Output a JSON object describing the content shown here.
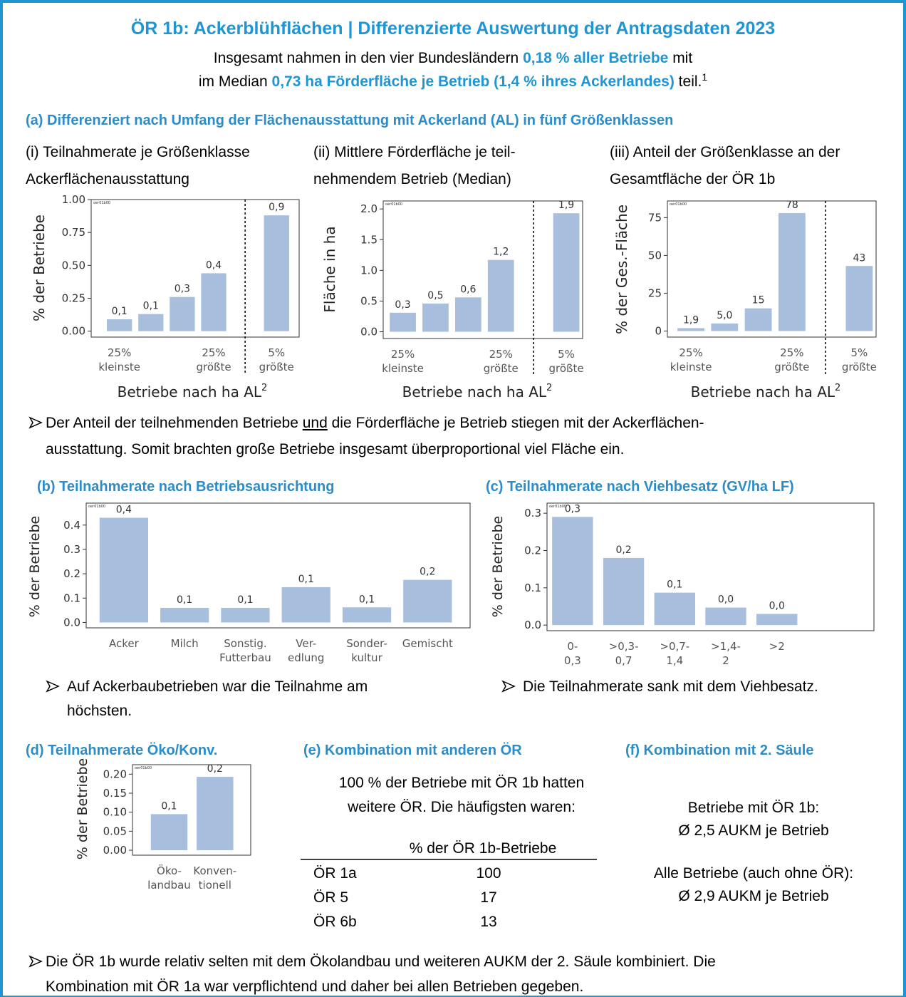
{
  "header": {
    "title": "ÖR 1b: Ackerblühflächen | Differenzierte Auswertung der Antragsdaten 2023",
    "subtitle": [
      [
        "Insgesamt nahmen in den vier Bundesländern ",
        "0,18 % aller Betriebe",
        " mit"
      ],
      [
        "im Median ",
        "0,73 ha Förderfläche je Betrieb (1,4 % ihres Ackerlandes)",
        " teil.",
        "1"
      ]
    ]
  },
  "section_a": {
    "heading": "(a) Differenziert nach Umfang der Flächenausstattung mit Ackerland (AL) in fünf Größenklassen",
    "note": [
      [
        "Der Anteil der teilnehmenden Betriebe ",
        "und",
        " die Förderfläche je Betrieb stiegen mit der Ackerflächen-"
      ],
      [
        "ausstattung. Somit brachten große Betriebe insgesamt überproportional viel Fläche ein."
      ]
    ]
  },
  "note_b": [
    "Auf Ackerbaubetrieben war die Teilnahme am",
    "höchsten."
  ],
  "note_c": "Die Teilnahmerate sank mit dem Viehbesatz.",
  "section_e": {
    "heading": "(e) Kombination mit anderen ÖR",
    "intro": [
      "100 % der Betriebe mit ÖR 1b hatten",
      "weitere ÖR. Die häufigsten waren:"
    ],
    "table": {
      "header": "% der ÖR 1b-Betriebe",
      "rows": [
        [
          "ÖR 1a",
          "100"
        ],
        [
          "ÖR 5",
          "17"
        ],
        [
          "ÖR 6b",
          "13"
        ]
      ]
    }
  },
  "section_f": {
    "heading": "(f) Kombination mit 2. Säule",
    "lines": [
      "Betriebe mit ÖR 1b:",
      "Ø 2,5 AUKM je Betrieb",
      "Alle Betriebe (auch ohne ÖR):",
      "Ø 2,9 AUKM je Betrieb"
    ]
  },
  "final_note": [
    "Die ÖR 1b wurde relativ selten mit dem Ökolandbau und weiteren AUKM der 2. Säule kombiniert. Die",
    "Kombination mit ÖR 1a war verpflichtend und daher bei allen Betrieben gegeben."
  ],
  "chart_data": [
    {
      "type": "bar",
      "title": [
        "(i) Teilnahmerate je Größenklasse",
        "Ackerflächenausstattung"
      ],
      "y_label": "% der Betriebe",
      "x_label": "Betriebe nach ha AL",
      "x_label_note": "2",
      "watermark": "oer01b00",
      "divider": true,
      "color": "#a8bedd",
      "categories": [
        [
          "25%",
          "kleinste"
        ],
        null,
        null,
        [
          "25%",
          "größte"
        ],
        [
          "5%",
          "größte"
        ]
      ],
      "values": [
        0.09,
        0.13,
        0.26,
        0.44,
        0.88
      ],
      "value_labels": [
        "0,1",
        "0,1",
        "0,3",
        "0,4",
        "0,9"
      ],
      "ylim": [
        -0.045,
        1.0
      ],
      "yticks": [
        {
          "value": 0,
          "label": "0.00"
        },
        {
          "value": 0.25,
          "label": "0.25"
        },
        {
          "value": 0.5,
          "label": "0.50"
        },
        {
          "value": 0.75,
          "label": "0.75"
        },
        {
          "value": 1,
          "label": "1.00"
        }
      ]
    },
    {
      "type": "bar",
      "title": [
        "(ii) Mittlere Förderfläche je teil-",
        "nehmendem Betrieb (Median)"
      ],
      "y_label": "Fläche in ha",
      "x_label": "Betriebe nach ha AL",
      "x_label_note": "2",
      "watermark": "oer01b00",
      "divider": true,
      "color": "#a8bedd",
      "categories": [
        [
          "25%",
          "kleinste"
        ],
        null,
        null,
        [
          "25%",
          "größte"
        ],
        [
          "5%",
          "größte"
        ]
      ],
      "values": [
        0.31,
        0.46,
        0.56,
        1.17,
        1.93
      ],
      "value_labels": [
        "0,3",
        "0,5",
        "0,6",
        "1,2",
        "1,9"
      ],
      "ylim": [
        -0.11,
        2.13
      ],
      "yticks": [
        {
          "value": 0,
          "label": "0.0"
        },
        {
          "value": 0.5,
          "label": "0.5"
        },
        {
          "value": 1,
          "label": "1.0"
        },
        {
          "value": 1.5,
          "label": "1.5"
        },
        {
          "value": 2,
          "label": "2.0"
        }
      ]
    },
    {
      "type": "bar",
      "title": [
        "(iii) Anteil der Größenklasse an der",
        "Gesamtfläche der ÖR 1b"
      ],
      "y_label": "% der Ges.-Fläche",
      "x_label": "Betriebe nach ha AL",
      "x_label_note": "2",
      "watermark": "oer01b00",
      "divider": true,
      "color": "#a8bedd",
      "categories": [
        [
          "25%",
          "kleinste"
        ],
        null,
        null,
        [
          "25%",
          "größte"
        ],
        [
          "5%",
          "größte"
        ]
      ],
      "values": [
        1.9,
        5.0,
        15,
        78,
        43
      ],
      "value_labels": [
        "1,9",
        "5,0",
        "15",
        "78",
        "43"
      ],
      "ylim": [
        -4,
        86
      ],
      "yticks": [
        0,
        25,
        50,
        75
      ]
    },
    {
      "type": "bar",
      "title": "(b) Teilnahmerate nach Betriebsausrichtung",
      "y_label": "% der Betriebe",
      "watermark": "oer01b00",
      "color": "#a8bedd",
      "categories": [
        [
          "Acker"
        ],
        [
          "Milch"
        ],
        [
          "Sonstig.",
          "Futterbau"
        ],
        [
          "Ver-",
          "edlung"
        ],
        [
          "Sonder-",
          "kultur"
        ],
        [
          "Gemischt"
        ]
      ],
      "values": [
        0.43,
        0.06,
        0.06,
        0.145,
        0.062,
        0.175
      ],
      "value_labels": [
        "0,4",
        "0,1",
        "0,1",
        "0,1",
        "0,1",
        "0,2"
      ],
      "ylim": [
        -0.022,
        0.49
      ],
      "yticks": [
        {
          "value": 0,
          "label": "0.0"
        },
        {
          "value": 0.1,
          "label": "0.1"
        },
        {
          "value": 0.2,
          "label": "0.2"
        },
        {
          "value": 0.3,
          "label": "0.3"
        },
        {
          "value": 0.4,
          "label": "0.4"
        }
      ]
    },
    {
      "type": "bar",
      "title": "(c) Teilnahmerate nach Viehbesatz (GV/ha LF)",
      "y_label": "% der Betriebe",
      "watermark": "oer01b00",
      "color": "#a8bedd",
      "categories": [
        [
          "0-",
          "0,3"
        ],
        [
          ">0,3-",
          "0,7"
        ],
        [
          ">0,7-",
          "1,4"
        ],
        [
          ">1,4-",
          "2"
        ],
        [
          ">2"
        ]
      ],
      "values": [
        0.29,
        0.18,
        0.087,
        0.047,
        0.03
      ],
      "value_labels": [
        "0,3",
        "0,2",
        "0,1",
        "0,0",
        "0,0"
      ],
      "ylim": [
        -0.015,
        0.327
      ],
      "yticks": [
        {
          "value": 0,
          "label": "0.0"
        },
        {
          "value": 0.1,
          "label": "0.1"
        },
        {
          "value": 0.2,
          "label": "0.2"
        },
        {
          "value": 0.3,
          "label": "0.3"
        }
      ]
    },
    {
      "type": "bar",
      "title": "(d) Teilnahmerate Öko/Konv.",
      "y_label": "% der Betriebe",
      "watermark": "oer01b00",
      "color": "#a8bedd",
      "categories": [
        [
          "Öko-",
          "landbau"
        ],
        [
          "Konven-",
          "tionell"
        ]
      ],
      "values": [
        0.095,
        0.193
      ],
      "value_labels": [
        "0,1",
        "0,2"
      ],
      "ylim": [
        -0.013,
        0.225
      ],
      "yticks": [
        {
          "value": 0,
          "label": "0.00"
        },
        {
          "value": 0.05,
          "label": "0.05"
        },
        {
          "value": 0.1,
          "label": "0.10"
        },
        {
          "value": 0.15,
          "label": "0.15"
        },
        {
          "value": 0.2,
          "label": "0.20"
        }
      ]
    }
  ]
}
